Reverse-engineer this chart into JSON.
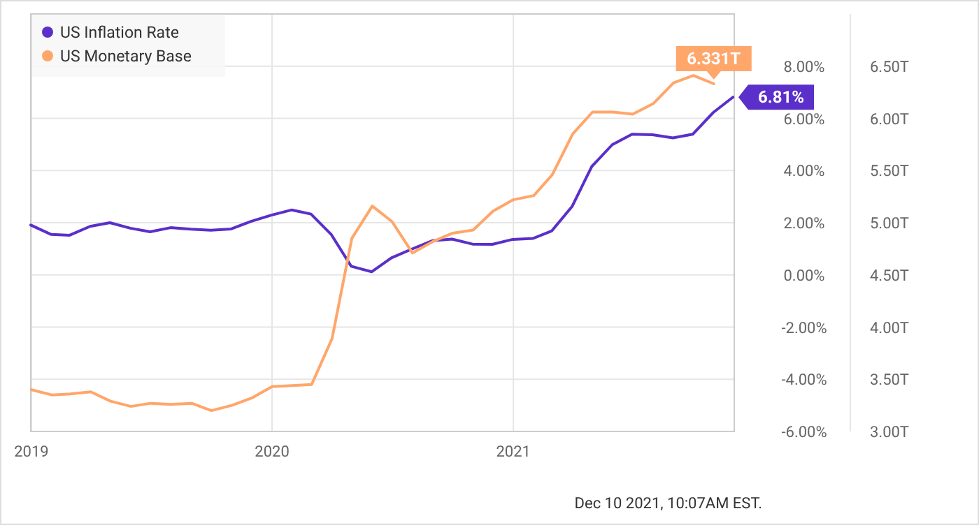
{
  "chart_data": {
    "type": "line",
    "xlim": [
      "2018-12-31",
      "2021-12-02"
    ],
    "xticks": [
      "2019",
      "2020",
      "2021"
    ],
    "ylim": [
      -6,
      10
    ],
    "yticks": [
      {
        "value": -6,
        "label": "-6.00%"
      },
      {
        "value": -4,
        "label": "-4.00%"
      },
      {
        "value": -2,
        "label": "-2.00%"
      },
      {
        "value": 0,
        "label": "0.00%"
      },
      {
        "value": 2,
        "label": "2.00%"
      },
      {
        "value": 4,
        "label": "4.00%"
      },
      {
        "value": 6,
        "label": "6.00%"
      },
      {
        "value": 8,
        "label": "8.00%"
      }
    ],
    "y2lim": [
      3,
      7
    ],
    "y2ticks": [
      {
        "value": 3,
        "label": "3.00T"
      },
      {
        "value": 3.5,
        "label": "3.50T"
      },
      {
        "value": 4,
        "label": "4.00T"
      },
      {
        "value": 4.5,
        "label": "4.50T"
      },
      {
        "value": 5,
        "label": "5.00T"
      },
      {
        "value": 5.5,
        "label": "5.50T"
      },
      {
        "value": 6,
        "label": "6.00T"
      },
      {
        "value": 6.5,
        "label": "6.50T"
      }
    ],
    "grid": true,
    "legend": "top left",
    "series": [
      {
        "name": "US Inflation Rate",
        "color": "#5b2fc9",
        "x": [
          "2018-12-31",
          "2019-01-31",
          "2019-02-28",
          "2019-03-31",
          "2019-04-30",
          "2019-05-31",
          "2019-06-30",
          "2019-07-31",
          "2019-08-31",
          "2019-09-30",
          "2019-10-31",
          "2019-11-30",
          "2019-12-31",
          "2020-01-31",
          "2020-02-29",
          "2020-03-31",
          "2020-04-30",
          "2020-05-31",
          "2020-06-30",
          "2020-07-31",
          "2020-08-31",
          "2020-09-30",
          "2020-10-31",
          "2020-11-30",
          "2020-12-31",
          "2021-01-31",
          "2021-02-28",
          "2021-03-31",
          "2021-04-30",
          "2021-05-31",
          "2021-06-30",
          "2021-07-31",
          "2021-08-31",
          "2021-09-30",
          "2021-10-31",
          "2021-11-30"
        ],
        "values": [
          1.91,
          1.55,
          1.52,
          1.86,
          2.0,
          1.79,
          1.65,
          1.81,
          1.75,
          1.71,
          1.76,
          2.05,
          2.29,
          2.49,
          2.33,
          1.54,
          0.33,
          0.12,
          0.65,
          0.99,
          1.31,
          1.37,
          1.18,
          1.17,
          1.36,
          1.4,
          1.68,
          2.62,
          4.16,
          4.99,
          5.39,
          5.37,
          5.25,
          5.39,
          6.22,
          6.81
        ],
        "value_labels": [
          null,
          null,
          null,
          null,
          null,
          null,
          null,
          null,
          null,
          null,
          null,
          null,
          null,
          null,
          null,
          null,
          null,
          null,
          null,
          null,
          null,
          null,
          null,
          null,
          null,
          null,
          null,
          null,
          null,
          null,
          null,
          null,
          null,
          null,
          null,
          "6.81%"
        ]
      },
      {
        "name": "US Monetary Base",
        "color": "#ffa66b",
        "axis": "y2",
        "x": [
          "2019-01",
          "2019-02",
          "2019-03",
          "2019-04",
          "2019-05",
          "2019-06",
          "2019-07",
          "2019-08",
          "2019-09",
          "2019-10",
          "2019-11",
          "2019-12",
          "2020-01",
          "2020-02",
          "2020-03",
          "2020-04",
          "2020-05",
          "2020-06",
          "2020-07",
          "2020-08",
          "2020-09",
          "2020-10",
          "2020-11",
          "2020-12",
          "2021-01",
          "2021-02",
          "2021-03",
          "2021-04",
          "2021-05",
          "2021-06",
          "2021-07",
          "2021-08",
          "2021-09",
          "2021-10",
          "2021-11"
        ],
        "values": [
          3.4,
          3.35,
          3.36,
          3.38,
          3.29,
          3.24,
          3.27,
          3.26,
          3.27,
          3.2,
          3.25,
          3.32,
          3.43,
          3.44,
          3.45,
          3.89,
          4.85,
          5.16,
          5.01,
          4.71,
          4.82,
          4.9,
          4.93,
          5.11,
          5.22,
          5.26,
          5.46,
          5.85,
          6.06,
          6.06,
          6.04,
          6.14,
          6.34,
          6.41,
          6.331
        ],
        "value_labels": [
          null,
          null,
          null,
          null,
          null,
          null,
          null,
          null,
          null,
          null,
          null,
          null,
          null,
          null,
          null,
          null,
          null,
          null,
          null,
          null,
          null,
          null,
          null,
          null,
          null,
          null,
          null,
          null,
          null,
          null,
          null,
          null,
          null,
          null,
          "6.331T"
        ]
      }
    ],
    "annotations": [
      "Dec 10 2021, 10:07AM EST."
    ]
  }
}
